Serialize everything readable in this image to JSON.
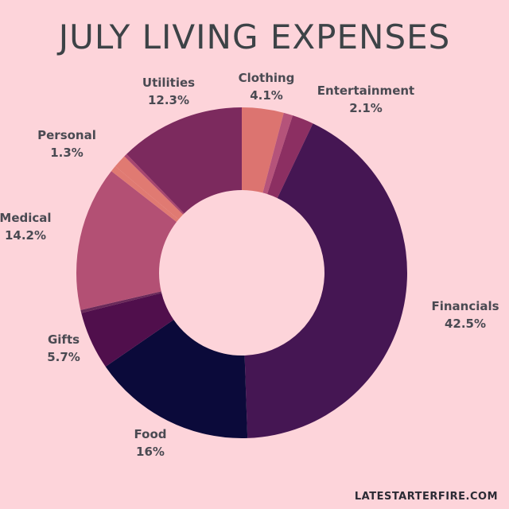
{
  "chart_data": {
    "type": "pie",
    "title": "JULY LIVING EXPENSES",
    "series": [
      {
        "name": "Clothing",
        "value": 4.1,
        "label": "4.1%",
        "color": "#dc7470"
      },
      {
        "name": "",
        "value": 0.9,
        "label": "",
        "color": "#b5537a"
      },
      {
        "name": "Entertainment",
        "value": 2.1,
        "label": "2.1%",
        "color": "#8c2f62"
      },
      {
        "name": "Financials",
        "value": 42.5,
        "label": "42.5%",
        "color": "#451653"
      },
      {
        "name": "Food",
        "value": 16,
        "label": "16%",
        "color": "#0b0a3a"
      },
      {
        "name": "Gifts",
        "value": 5.7,
        "label": "5.7%",
        "color": "#500f4c"
      },
      {
        "name": "",
        "value": 0.3,
        "label": "",
        "color": "#6a2a5a"
      },
      {
        "name": "Medical",
        "value": 14.2,
        "label": "14.2%",
        "color": "#b35074"
      },
      {
        "name": "",
        "value": 0.6,
        "label": "",
        "color": "#e07a72"
      },
      {
        "name": "Personal",
        "value": 1.3,
        "label": "1.3%",
        "color": "#e07a72"
      },
      {
        "name": "",
        "value": 0.3,
        "label": "",
        "color": "#a84670"
      },
      {
        "name": "Utilities",
        "value": 12.3,
        "label": "12.3%",
        "color": "#7c2a5e"
      }
    ]
  },
  "footer": "LATESTARTERFIRE.COM"
}
